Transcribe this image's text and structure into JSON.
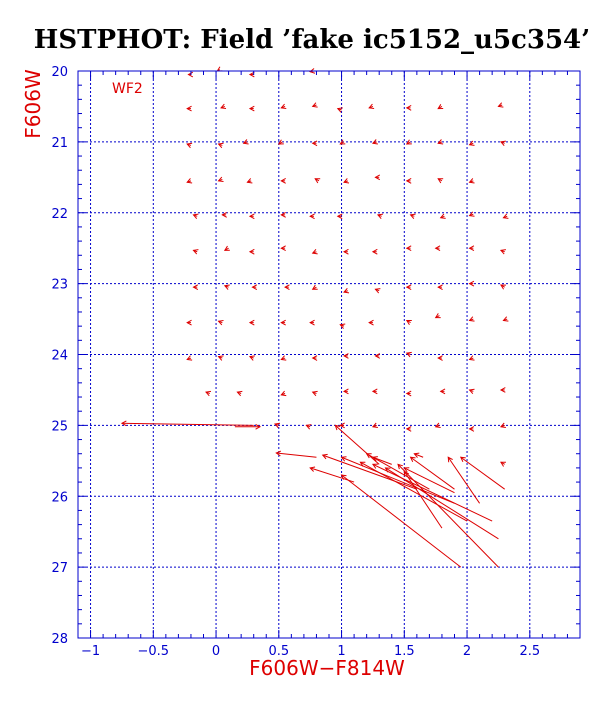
{
  "colors": {
    "frame": "#0000cc",
    "grid": "#0000cc",
    "data": "#dd0000",
    "title": "#000000",
    "background": "#ffffff"
  },
  "chart_data": {
    "type": "scatter",
    "title": "HSTPHOT: Field ’fake ic5152_u5c354’",
    "panel_label": "WF2",
    "xlabel": "F606W−F814W",
    "ylabel": "F606W",
    "xlim": [
      -1.1,
      2.9
    ],
    "ylim": [
      28,
      20
    ],
    "y_axis_inverted": true,
    "x_ticks": [
      -1,
      -0.5,
      0,
      0.5,
      1,
      1.5,
      2,
      2.5
    ],
    "x_tick_labels": [
      "−1",
      "−0.5",
      "0",
      "0.5",
      "1",
      "1.5",
      "2",
      "2.5"
    ],
    "y_ticks": [
      20,
      21,
      22,
      23,
      24,
      25,
      26,
      27,
      28
    ],
    "y_tick_labels": [
      "20",
      "21",
      "22",
      "23",
      "24",
      "25",
      "26",
      "27",
      "28"
    ],
    "grid": true,
    "description_of_marks": "Each mark is a displacement arrow from input (color, mag) to measured (color, mag); short arrows appear as small chevrons.",
    "series": [
      {
        "vectors": [
          {
            "x0": -0.2,
            "y0": 20.05,
            "x1": -0.22,
            "y1": 20.05
          },
          {
            "x0": 0.03,
            "y0": 19.98,
            "x1": 0.01,
            "y1": 20.0
          },
          {
            "x0": 0.3,
            "y0": 20.05,
            "x1": 0.27,
            "y1": 20.05
          },
          {
            "x0": 0.78,
            "y0": 20.0,
            "x1": 0.75,
            "y1": 20.01
          },
          {
            "x0": -0.2,
            "y0": 20.53,
            "x1": -0.23,
            "y1": 20.53
          },
          {
            "x0": 0.07,
            "y0": 20.5,
            "x1": 0.04,
            "y1": 20.52
          },
          {
            "x0": 0.3,
            "y0": 20.53,
            "x1": 0.27,
            "y1": 20.53
          },
          {
            "x0": 0.55,
            "y0": 20.5,
            "x1": 0.52,
            "y1": 20.52
          },
          {
            "x0": 0.8,
            "y0": 20.48,
            "x1": 0.77,
            "y1": 20.5
          },
          {
            "x0": 1.0,
            "y0": 20.55,
            "x1": 0.97,
            "y1": 20.53
          },
          {
            "x0": 1.25,
            "y0": 20.5,
            "x1": 1.22,
            "y1": 20.52
          },
          {
            "x0": 1.55,
            "y0": 20.52,
            "x1": 1.52,
            "y1": 20.52
          },
          {
            "x0": 1.8,
            "y0": 20.5,
            "x1": 1.77,
            "y1": 20.53
          },
          {
            "x0": 2.28,
            "y0": 20.48,
            "x1": 2.25,
            "y1": 20.5
          },
          {
            "x0": -0.2,
            "y0": 21.05,
            "x1": -0.23,
            "y1": 21.03
          },
          {
            "x0": 0.05,
            "y0": 21.05,
            "x1": 0.02,
            "y1": 21.03
          },
          {
            "x0": 0.25,
            "y0": 21.0,
            "x1": 0.22,
            "y1": 21.02
          },
          {
            "x0": 0.53,
            "y0": 21.0,
            "x1": 0.5,
            "y1": 21.03
          },
          {
            "x0": 0.8,
            "y0": 21.02,
            "x1": 0.77,
            "y1": 21.02
          },
          {
            "x0": 1.02,
            "y0": 21.0,
            "x1": 0.99,
            "y1": 21.03
          },
          {
            "x0": 1.28,
            "y0": 21.0,
            "x1": 1.25,
            "y1": 21.02
          },
          {
            "x0": 1.55,
            "y0": 21.0,
            "x1": 1.52,
            "y1": 21.03
          },
          {
            "x0": 1.8,
            "y0": 21.0,
            "x1": 1.77,
            "y1": 21.02
          },
          {
            "x0": 2.05,
            "y0": 21.02,
            "x1": 2.02,
            "y1": 21.04
          },
          {
            "x0": 2.3,
            "y0": 21.02,
            "x1": 2.27,
            "y1": 21.0
          },
          {
            "x0": -0.2,
            "y0": 21.55,
            "x1": -0.23,
            "y1": 21.57
          },
          {
            "x0": 0.05,
            "y0": 21.53,
            "x1": 0.02,
            "y1": 21.55
          },
          {
            "x0": 0.28,
            "y0": 21.55,
            "x1": 0.25,
            "y1": 21.57
          },
          {
            "x0": 0.55,
            "y0": 21.55,
            "x1": 0.52,
            "y1": 21.55
          },
          {
            "x0": 0.82,
            "y0": 21.55,
            "x1": 0.79,
            "y1": 21.52
          },
          {
            "x0": 1.05,
            "y0": 21.55,
            "x1": 1.02,
            "y1": 21.57
          },
          {
            "x0": 1.3,
            "y0": 21.5,
            "x1": 1.27,
            "y1": 21.5
          },
          {
            "x0": 1.55,
            "y0": 21.55,
            "x1": 1.52,
            "y1": 21.55
          },
          {
            "x0": 1.8,
            "y0": 21.55,
            "x1": 1.77,
            "y1": 21.52
          },
          {
            "x0": 2.05,
            "y0": 21.55,
            "x1": 2.02,
            "y1": 21.57
          },
          {
            "x0": -0.15,
            "y0": 22.05,
            "x1": -0.18,
            "y1": 22.03
          },
          {
            "x0": 0.08,
            "y0": 22.03,
            "x1": 0.05,
            "y1": 22.03
          },
          {
            "x0": 0.3,
            "y0": 22.05,
            "x1": 0.27,
            "y1": 22.05
          },
          {
            "x0": 0.55,
            "y0": 22.03,
            "x1": 0.52,
            "y1": 22.03
          },
          {
            "x0": 0.78,
            "y0": 22.05,
            "x1": 0.75,
            "y1": 22.05
          },
          {
            "x0": 1.0,
            "y0": 22.05,
            "x1": 0.97,
            "y1": 22.05
          },
          {
            "x0": 1.32,
            "y0": 22.05,
            "x1": 1.29,
            "y1": 22.03
          },
          {
            "x0": 1.58,
            "y0": 22.05,
            "x1": 1.55,
            "y1": 22.03
          },
          {
            "x0": 1.82,
            "y0": 22.05,
            "x1": 1.79,
            "y1": 22.07
          },
          {
            "x0": 2.05,
            "y0": 22.02,
            "x1": 2.02,
            "y1": 22.04
          },
          {
            "x0": 2.32,
            "y0": 22.05,
            "x1": 2.29,
            "y1": 22.07
          },
          {
            "x0": -0.15,
            "y0": 22.55,
            "x1": -0.18,
            "y1": 22.53
          },
          {
            "x0": 0.1,
            "y0": 22.5,
            "x1": 0.07,
            "y1": 22.53
          },
          {
            "x0": 0.3,
            "y0": 22.55,
            "x1": 0.27,
            "y1": 22.55
          },
          {
            "x0": 0.55,
            "y0": 22.5,
            "x1": 0.52,
            "y1": 22.5
          },
          {
            "x0": 0.8,
            "y0": 22.55,
            "x1": 0.77,
            "y1": 22.57
          },
          {
            "x0": 1.05,
            "y0": 22.55,
            "x1": 1.02,
            "y1": 22.55
          },
          {
            "x0": 1.28,
            "y0": 22.55,
            "x1": 1.25,
            "y1": 22.55
          },
          {
            "x0": 1.55,
            "y0": 22.5,
            "x1": 1.52,
            "y1": 22.5
          },
          {
            "x0": 1.78,
            "y0": 22.5,
            "x1": 1.75,
            "y1": 22.5
          },
          {
            "x0": 2.05,
            "y0": 22.5,
            "x1": 2.02,
            "y1": 22.5
          },
          {
            "x0": 2.3,
            "y0": 22.55,
            "x1": 2.27,
            "y1": 22.53
          },
          {
            "x0": -0.15,
            "y0": 23.05,
            "x1": -0.18,
            "y1": 23.05
          },
          {
            "x0": 0.1,
            "y0": 23.05,
            "x1": 0.07,
            "y1": 23.03
          },
          {
            "x0": 0.32,
            "y0": 23.05,
            "x1": 0.29,
            "y1": 23.05
          },
          {
            "x0": 0.58,
            "y0": 23.05,
            "x1": 0.55,
            "y1": 23.05
          },
          {
            "x0": 0.8,
            "y0": 23.05,
            "x1": 0.77,
            "y1": 23.08
          },
          {
            "x0": 1.05,
            "y0": 23.1,
            "x1": 1.02,
            "y1": 23.12
          },
          {
            "x0": 1.3,
            "y0": 23.1,
            "x1": 1.27,
            "y1": 23.08
          },
          {
            "x0": 1.55,
            "y0": 23.05,
            "x1": 1.52,
            "y1": 23.05
          },
          {
            "x0": 1.8,
            "y0": 23.05,
            "x1": 1.77,
            "y1": 23.05
          },
          {
            "x0": 2.05,
            "y0": 23.0,
            "x1": 2.02,
            "y1": 23.0
          },
          {
            "x0": 2.3,
            "y0": 23.05,
            "x1": 2.27,
            "y1": 23.02
          },
          {
            "x0": -0.2,
            "y0": 23.55,
            "x1": -0.23,
            "y1": 23.55
          },
          {
            "x0": 0.05,
            "y0": 23.55,
            "x1": 0.02,
            "y1": 23.53
          },
          {
            "x0": 0.3,
            "y0": 23.55,
            "x1": 0.27,
            "y1": 23.55
          },
          {
            "x0": 0.55,
            "y0": 23.55,
            "x1": 0.52,
            "y1": 23.55
          },
          {
            "x0": 0.78,
            "y0": 23.55,
            "x1": 0.75,
            "y1": 23.55
          },
          {
            "x0": 1.02,
            "y0": 23.6,
            "x1": 0.99,
            "y1": 23.58
          },
          {
            "x0": 1.25,
            "y0": 23.55,
            "x1": 1.22,
            "y1": 23.55
          },
          {
            "x0": 1.55,
            "y0": 23.55,
            "x1": 1.52,
            "y1": 23.52
          },
          {
            "x0": 1.78,
            "y0": 23.45,
            "x1": 1.75,
            "y1": 23.48
          },
          {
            "x0": 2.05,
            "y0": 23.5,
            "x1": 2.02,
            "y1": 23.52
          },
          {
            "x0": 2.32,
            "y0": 23.5,
            "x1": 2.29,
            "y1": 23.52
          },
          {
            "x0": -0.2,
            "y0": 24.05,
            "x1": -0.23,
            "y1": 24.07
          },
          {
            "x0": 0.05,
            "y0": 24.05,
            "x1": 0.02,
            "y1": 24.03
          },
          {
            "x0": 0.3,
            "y0": 24.05,
            "x1": 0.27,
            "y1": 24.03
          },
          {
            "x0": 0.55,
            "y0": 24.05,
            "x1": 0.52,
            "y1": 24.07
          },
          {
            "x0": 0.8,
            "y0": 24.05,
            "x1": 0.77,
            "y1": 24.05
          },
          {
            "x0": 1.05,
            "y0": 24.02,
            "x1": 1.02,
            "y1": 24.02
          },
          {
            "x0": 1.3,
            "y0": 24.02,
            "x1": 1.27,
            "y1": 24.02
          },
          {
            "x0": 1.55,
            "y0": 24.0,
            "x1": 1.52,
            "y1": 23.98
          },
          {
            "x0": 1.8,
            "y0": 24.05,
            "x1": 1.77,
            "y1": 24.05
          },
          {
            "x0": 2.05,
            "y0": 24.05,
            "x1": 2.02,
            "y1": 24.07
          },
          {
            "x0": -0.05,
            "y0": 24.55,
            "x1": -0.08,
            "y1": 24.53
          },
          {
            "x0": 0.2,
            "y0": 24.55,
            "x1": 0.17,
            "y1": 24.53
          },
          {
            "x0": 0.55,
            "y0": 24.55,
            "x1": 0.52,
            "y1": 24.57
          },
          {
            "x0": 0.8,
            "y0": 24.55,
            "x1": 0.77,
            "y1": 24.53
          },
          {
            "x0": 1.05,
            "y0": 24.52,
            "x1": 1.02,
            "y1": 24.52
          },
          {
            "x0": 1.28,
            "y0": 24.52,
            "x1": 1.25,
            "y1": 24.52
          },
          {
            "x0": 1.55,
            "y0": 24.55,
            "x1": 1.52,
            "y1": 24.55
          },
          {
            "x0": 1.82,
            "y0": 24.52,
            "x1": 1.79,
            "y1": 24.52
          },
          {
            "x0": 2.05,
            "y0": 24.52,
            "x1": 2.02,
            "y1": 24.5
          },
          {
            "x0": 2.3,
            "y0": 24.5,
            "x1": 2.27,
            "y1": 24.5
          },
          {
            "x0": 0.3,
            "y0": 25.0,
            "x1": -0.75,
            "y1": 24.97
          },
          {
            "x0": 0.15,
            "y0": 25.02,
            "x1": 0.35,
            "y1": 25.02
          },
          {
            "x0": 0.5,
            "y0": 25.0,
            "x1": 0.47,
            "y1": 24.98
          },
          {
            "x0": 0.75,
            "y0": 25.02,
            "x1": 0.72,
            "y1": 25.0
          },
          {
            "x0": 1.02,
            "y0": 25.0,
            "x1": 0.99,
            "y1": 25.0
          },
          {
            "x0": 1.28,
            "y0": 25.0,
            "x1": 1.25,
            "y1": 25.02
          },
          {
            "x0": 1.55,
            "y0": 25.05,
            "x1": 1.52,
            "y1": 25.05
          },
          {
            "x0": 1.78,
            "y0": 25.0,
            "x1": 1.75,
            "y1": 25.02
          },
          {
            "x0": 2.05,
            "y0": 25.05,
            "x1": 2.02,
            "y1": 25.05
          },
          {
            "x0": 2.3,
            "y0": 25.0,
            "x1": 2.27,
            "y1": 25.02
          },
          {
            "x0": 0.8,
            "y0": 25.45,
            "x1": 0.48,
            "y1": 25.39
          },
          {
            "x0": 1.6,
            "y0": 25.9,
            "x1": 0.85,
            "y1": 25.42
          },
          {
            "x0": 1.9,
            "y0": 26.1,
            "x1": 1.0,
            "y1": 25.45
          },
          {
            "x0": 2.2,
            "y0": 26.35,
            "x1": 1.25,
            "y1": 25.55
          },
          {
            "x0": 2.25,
            "y0": 26.6,
            "x1": 1.35,
            "y1": 25.6
          },
          {
            "x0": 2.0,
            "y0": 26.35,
            "x1": 1.15,
            "y1": 25.52
          },
          {
            "x0": 1.9,
            "y0": 25.95,
            "x1": 1.5,
            "y1": 25.6
          },
          {
            "x0": 1.1,
            "y0": 25.8,
            "x1": 0.75,
            "y1": 25.6
          },
          {
            "x0": 2.25,
            "y0": 27.0,
            "x1": 1.45,
            "y1": 25.55
          },
          {
            "x0": 1.95,
            "y0": 27.0,
            "x1": 1.0,
            "y1": 25.7
          },
          {
            "x0": 1.8,
            "y0": 26.45,
            "x1": 1.5,
            "y1": 25.65
          },
          {
            "x0": 1.9,
            "y0": 25.9,
            "x1": 1.55,
            "y1": 25.45
          },
          {
            "x0": 2.1,
            "y0": 26.1,
            "x1": 1.85,
            "y1": 25.45
          },
          {
            "x0": 2.3,
            "y0": 25.9,
            "x1": 1.95,
            "y1": 25.45
          },
          {
            "x0": 1.7,
            "y0": 25.9,
            "x1": 1.2,
            "y1": 25.4
          },
          {
            "x0": 1.4,
            "y0": 25.55,
            "x1": 1.25,
            "y1": 25.45
          },
          {
            "x0": 1.65,
            "y0": 25.45,
            "x1": 1.58,
            "y1": 25.4
          },
          {
            "x0": 1.3,
            "y0": 25.55,
            "x1": 0.95,
            "y1": 25.0
          },
          {
            "x0": 2.3,
            "y0": 25.55,
            "x1": 2.27,
            "y1": 25.52
          }
        ]
      }
    ]
  }
}
